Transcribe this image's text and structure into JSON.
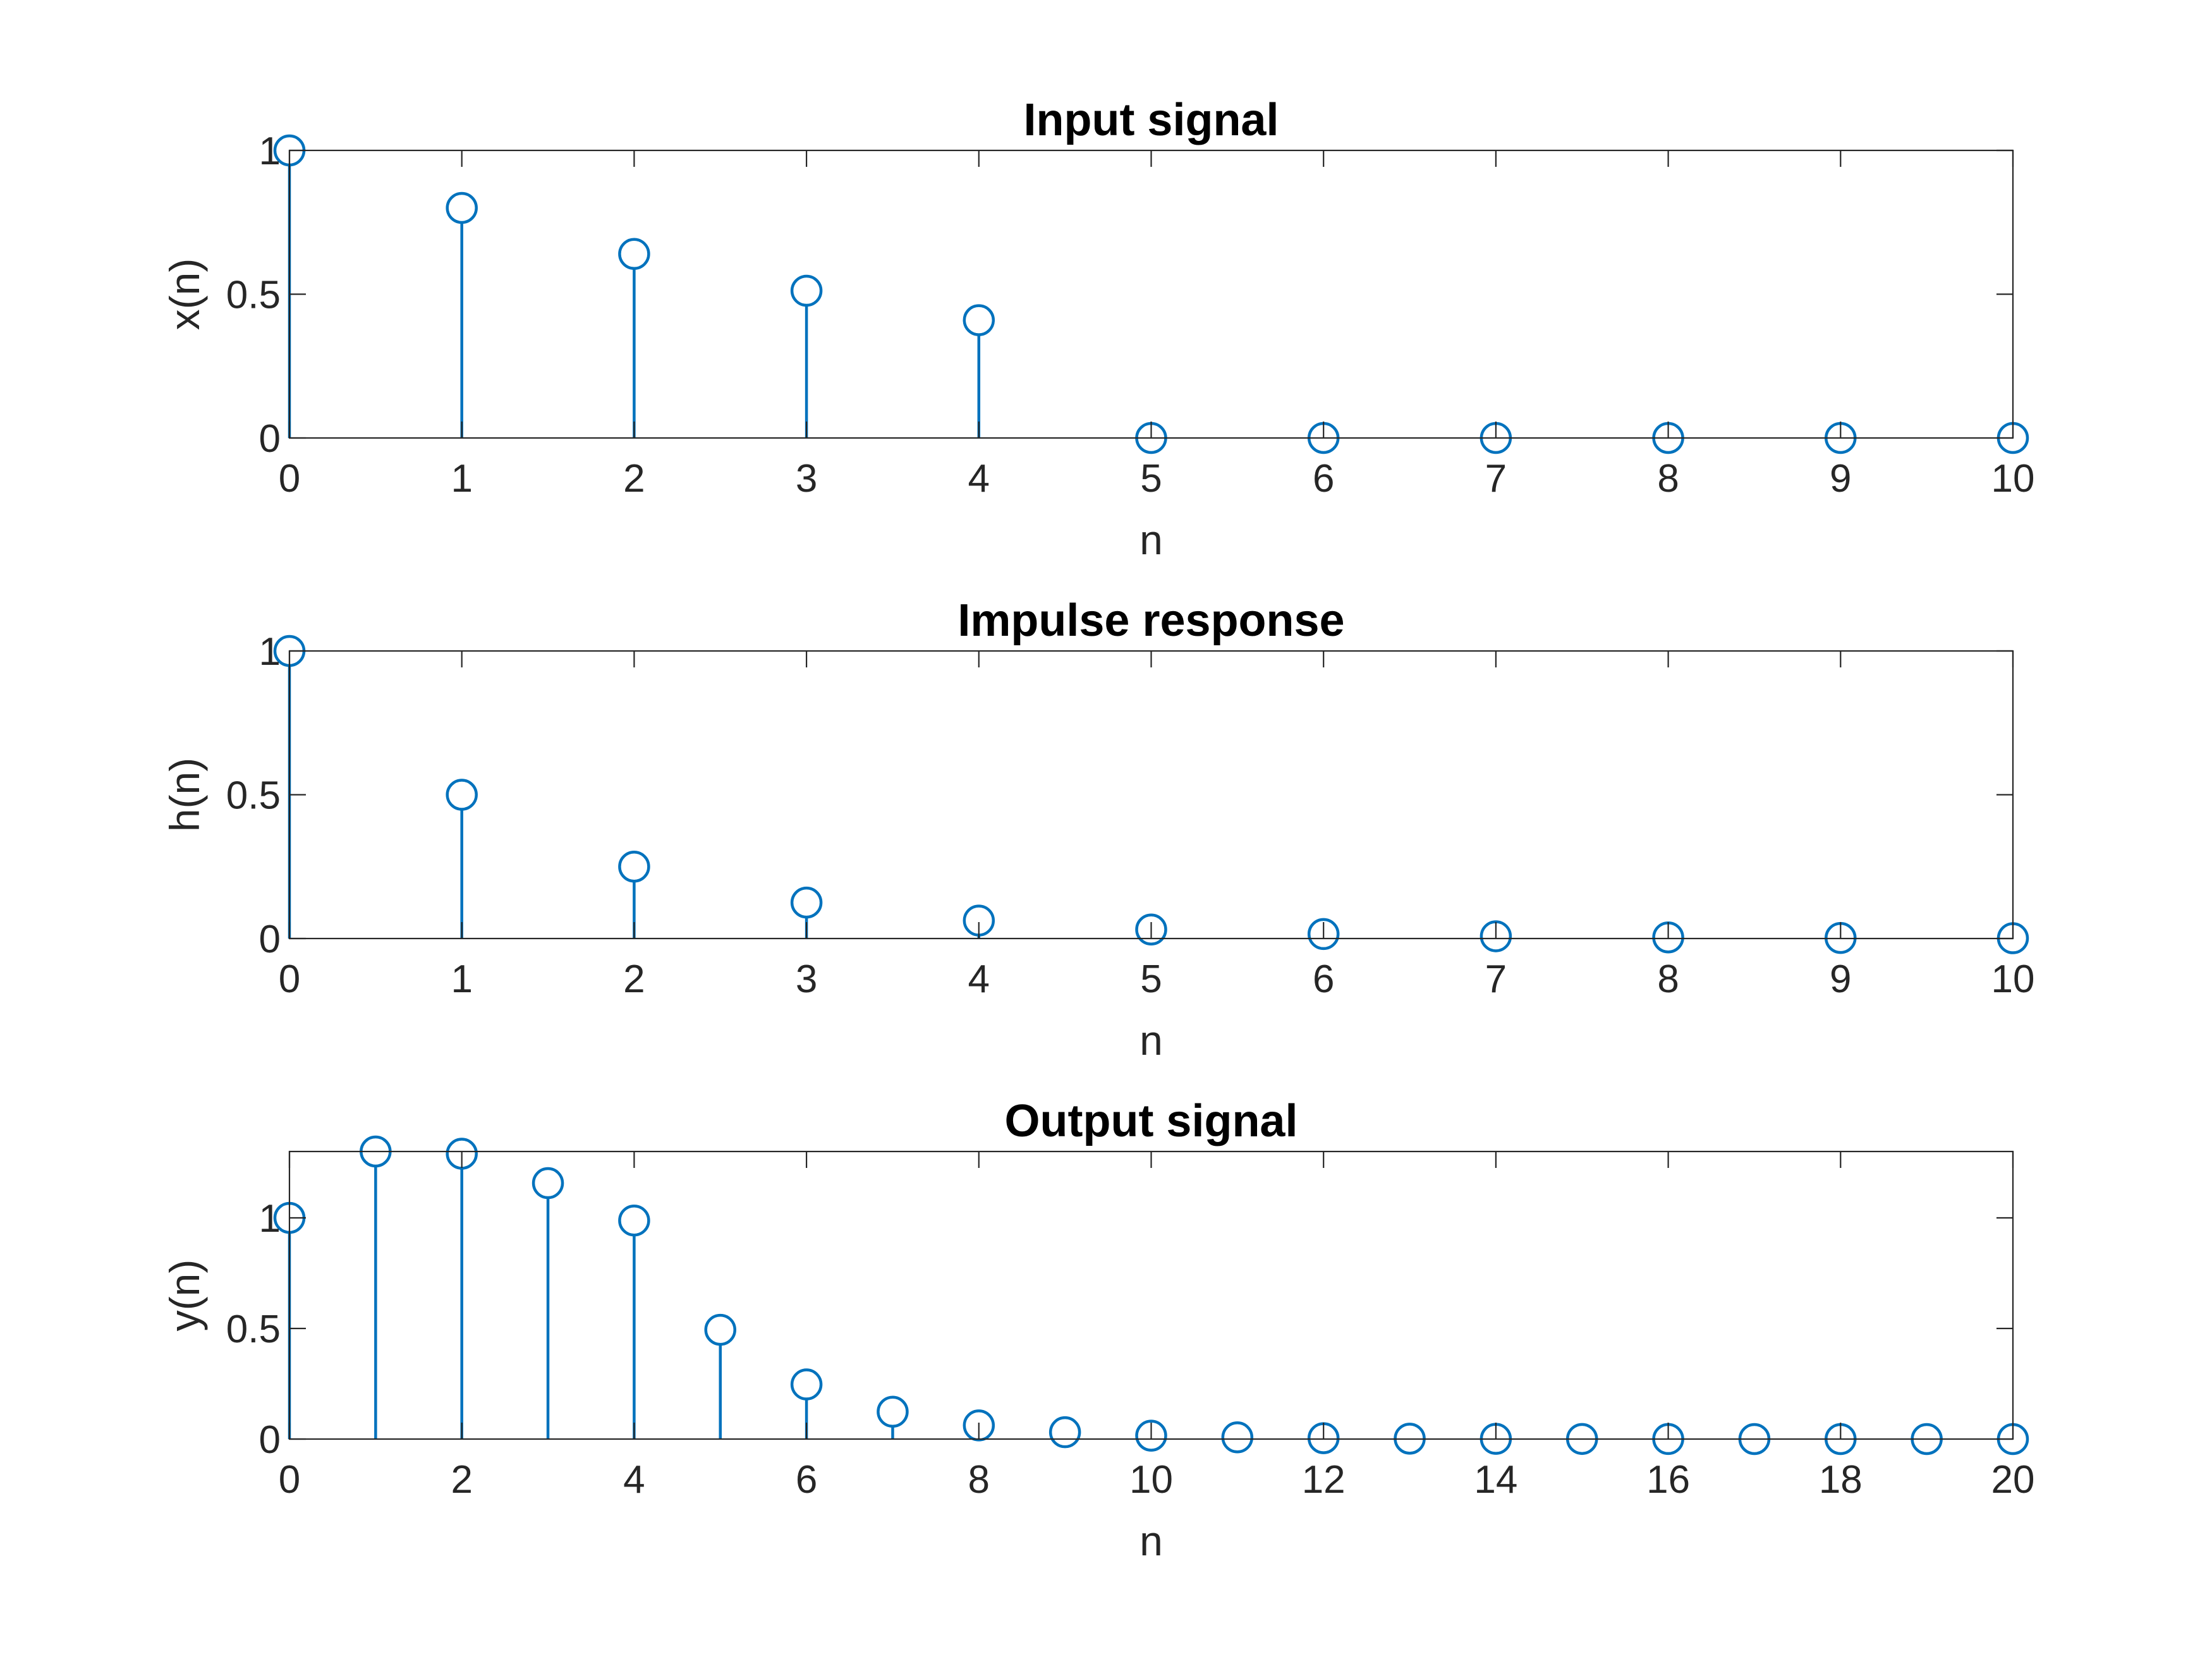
{
  "chart_data": [
    {
      "type": "stem",
      "title": "Input signal",
      "xlabel": "n",
      "ylabel": "x(n)",
      "xlim": [
        0,
        10
      ],
      "ylim": [
        0,
        1
      ],
      "xticks": [
        0,
        1,
        2,
        3,
        4,
        5,
        6,
        7,
        8,
        9,
        10
      ],
      "yticks": [
        0,
        0.5,
        1
      ],
      "ytick_labels": [
        "0",
        "0.5",
        "1"
      ],
      "x": [
        0,
        1,
        2,
        3,
        4,
        5,
        6,
        7,
        8,
        9,
        10
      ],
      "y": [
        1,
        0.8,
        0.64,
        0.512,
        0.4096,
        0,
        0,
        0,
        0,
        0,
        0
      ],
      "color": "#0072BD"
    },
    {
      "type": "stem",
      "title": "Impulse response",
      "xlabel": "n",
      "ylabel": "h(n)",
      "xlim": [
        0,
        10
      ],
      "ylim": [
        0,
        1
      ],
      "xticks": [
        0,
        1,
        2,
        3,
        4,
        5,
        6,
        7,
        8,
        9,
        10
      ],
      "yticks": [
        0,
        0.5,
        1
      ],
      "ytick_labels": [
        "0",
        "0.5",
        "1"
      ],
      "x": [
        0,
        1,
        2,
        3,
        4,
        5,
        6,
        7,
        8,
        9,
        10
      ],
      "y": [
        1,
        0.5,
        0.25,
        0.125,
        0.0625,
        0.03125,
        0.015625,
        0.0078125,
        0.00390625,
        0.001953125,
        0.0009765625
      ],
      "color": "#0072BD"
    },
    {
      "type": "stem",
      "title": "Output signal",
      "xlabel": "n",
      "ylabel": "y(n)",
      "xlim": [
        0,
        20
      ],
      "ylim": [
        0,
        1.3
      ],
      "xticks": [
        0,
        2,
        4,
        6,
        8,
        10,
        12,
        14,
        16,
        18,
        20
      ],
      "yticks": [
        0,
        0.5,
        1
      ],
      "ytick_labels": [
        "0",
        "0.5",
        "1"
      ],
      "x": [
        0,
        1,
        2,
        3,
        4,
        5,
        6,
        7,
        8,
        9,
        10,
        11,
        12,
        13,
        14,
        15,
        16,
        17,
        18,
        19,
        20
      ],
      "y": [
        1,
        1.3,
        1.29,
        1.157,
        0.988,
        0.494,
        0.247,
        0.1235,
        0.0617,
        0.0309,
        0.0154,
        0.0077,
        0.0039,
        0.0019,
        0.001,
        0.0005,
        0.0002,
        0.0001,
        0.0001,
        0,
        0
      ],
      "color": "#0072BD"
    }
  ]
}
